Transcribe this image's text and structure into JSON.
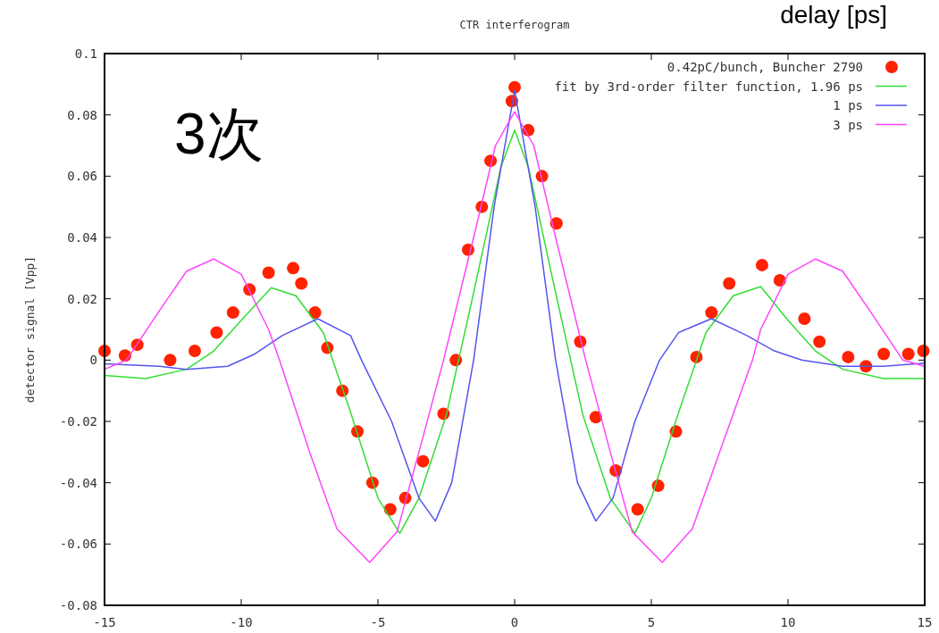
{
  "chart_data": {
    "type": "line",
    "title": "CTR interferogram",
    "ylabel": "detector signal [Vpp]",
    "annotations": [
      "3次",
      "delay [ps]"
    ],
    "xlim": [
      -15,
      15
    ],
    "xticks": [
      -15,
      -10,
      -5,
      0,
      5,
      10,
      15
    ],
    "ylim": [
      -0.08,
      0.1
    ],
    "yticks": [
      -0.08,
      -0.06,
      -0.04,
      -0.02,
      0,
      0.02,
      0.04,
      0.06,
      0.08,
      0.1
    ],
    "grid": false,
    "legend": "top right",
    "series": [
      {
        "name": "0.42pC/bunch, Buncher 2790",
        "type": "scatter",
        "marker": "circle",
        "color": "#ff2200",
        "x": [
          -15,
          -14.25,
          -13.8,
          -12.6,
          -11.7,
          -10.9,
          -10.3,
          -9.7,
          -9.0,
          -8.1,
          -7.8,
          -7.3,
          -6.85,
          -6.3,
          -5.75,
          -5.2,
          -4.55,
          -4.0,
          -3.35,
          -2.6,
          -2.15,
          -1.7,
          -1.2,
          -0.88,
          -0.1,
          0,
          0.5,
          1.0,
          1.53,
          2.4,
          2.97,
          3.7,
          4.5,
          5.25,
          5.9,
          6.65,
          7.2,
          7.85,
          9.05,
          9.7,
          10.6,
          11.15,
          12.2,
          12.85,
          13.5,
          14.4,
          14.95
        ],
        "values": [
          0.003,
          0.0015,
          0.005,
          0.0,
          0.003,
          0.009,
          0.0155,
          0.023,
          0.0285,
          0.03,
          0.025,
          0.0155,
          0.004,
          -0.01,
          -0.0233,
          -0.04,
          -0.0487,
          -0.045,
          -0.033,
          -0.0175,
          0.0,
          0.036,
          0.05,
          0.065,
          0.0845,
          0.089,
          0.075,
          0.06,
          0.0446,
          0.006,
          -0.0186,
          -0.036,
          -0.0487,
          -0.041,
          -0.0233,
          0.001,
          0.0155,
          0.025,
          0.031,
          0.026,
          0.0135,
          0.006,
          0.001,
          -0.002,
          0.002,
          0.002,
          0.003
        ]
      },
      {
        "name": "fit by 3rd-order filter function, 1.96 ps",
        "color": "#33dd33",
        "x": [
          -15,
          -13.5,
          -12,
          -11,
          -10,
          -8.9,
          -8,
          -7,
          -6,
          -5,
          -4.2,
          -3.5,
          -2.5,
          -1.5,
          -0.5,
          0,
          0.5,
          1.5,
          2.5,
          3.5,
          4.4,
          5,
          6,
          7,
          8,
          9,
          10,
          11,
          12,
          13.5,
          15
        ],
        "values": [
          -0.005,
          -0.006,
          -0.003,
          0.003,
          0.013,
          0.0236,
          0.021,
          0.009,
          -0.017,
          -0.045,
          -0.0565,
          -0.045,
          -0.018,
          0.022,
          0.063,
          0.075,
          0.063,
          0.022,
          -0.018,
          -0.045,
          -0.0565,
          -0.045,
          -0.017,
          0.009,
          0.021,
          0.024,
          0.013,
          0.003,
          -0.003,
          -0.006,
          -0.006
        ]
      },
      {
        "name": "1 ps",
        "color": "#5555ee",
        "x": [
          -15,
          -13,
          -12,
          -10.5,
          -9.5,
          -8.5,
          -7.2,
          -6,
          -5.6,
          -4.5,
          -3.5,
          -2.9,
          -2.3,
          -1.5,
          -0.75,
          0,
          0.75,
          1.5,
          2.3,
          2.97,
          3.6,
          4.4,
          5.3,
          6,
          7.2,
          8.5,
          9.5,
          10.5,
          12,
          13.5,
          15
        ],
        "values": [
          -0.0012,
          -0.002,
          -0.003,
          -0.002,
          0.002,
          0.008,
          0.0135,
          0.008,
          0,
          -0.02,
          -0.045,
          -0.0525,
          -0.04,
          0,
          0.05,
          0.088,
          0.05,
          0,
          -0.04,
          -0.0525,
          -0.045,
          -0.02,
          0,
          0.009,
          0.0135,
          0.008,
          0.003,
          0,
          -0.002,
          -0.002,
          -0.001
        ]
      },
      {
        "name": "3 ps",
        "color": "#ff44ff",
        "x": [
          -15,
          -14.2,
          -13,
          -12,
          -11,
          -10,
          -9,
          -8.6,
          -7.5,
          -6.5,
          -5.3,
          -4.3,
          -3.5,
          -2.6,
          -1.5,
          -0.7,
          0,
          0.7,
          1.5,
          2.6,
          3.5,
          4.3,
          5.4,
          6.5,
          7.5,
          8.7,
          9,
          10,
          11,
          12,
          13,
          14.2,
          15
        ],
        "values": [
          -0.003,
          0,
          0.016,
          0.029,
          0.033,
          0.028,
          0.01,
          0,
          -0.03,
          -0.055,
          -0.066,
          -0.056,
          -0.03,
          0,
          0.04,
          0.07,
          0.081,
          0.07,
          0.04,
          0,
          -0.03,
          -0.056,
          -0.066,
          -0.055,
          -0.03,
          0,
          0.01,
          0.028,
          0.033,
          0.029,
          0.016,
          0,
          -0.002
        ]
      }
    ]
  }
}
